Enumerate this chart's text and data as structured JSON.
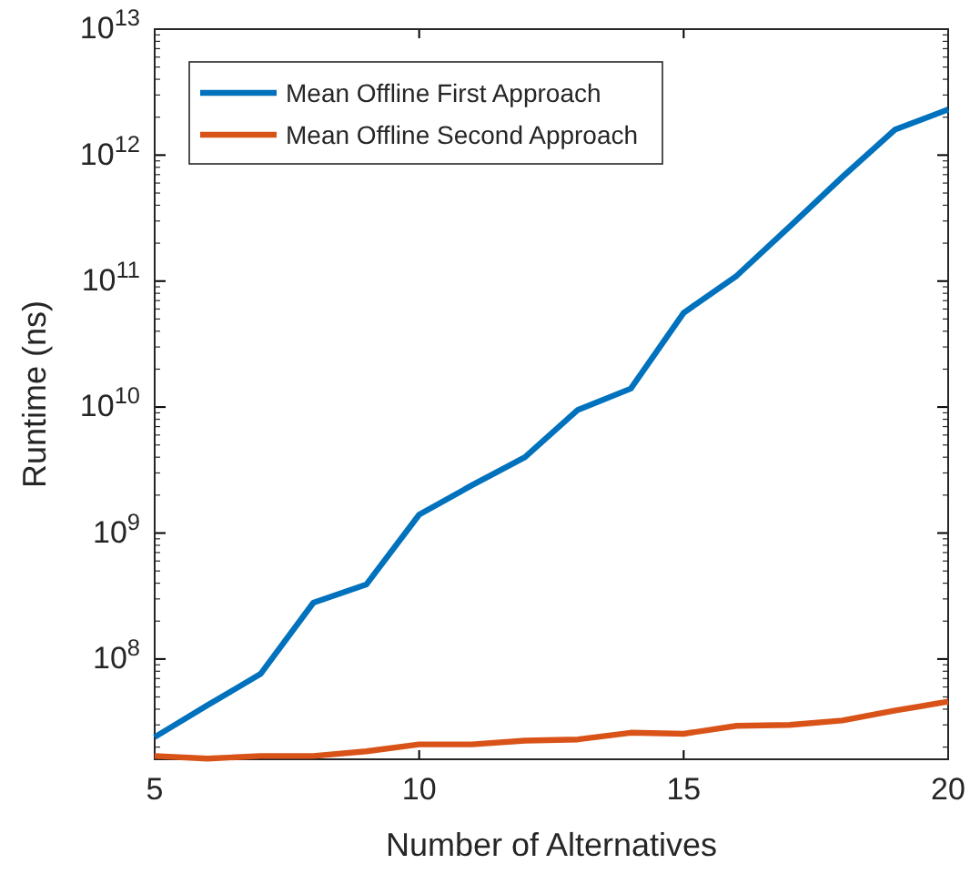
{
  "chart_data": {
    "type": "line",
    "xlabel": "Number of Alternatives",
    "ylabel": "Runtime (ns)",
    "log": "y",
    "x": [
      5,
      6,
      7,
      8,
      9,
      10,
      11,
      12,
      13,
      14,
      15,
      16,
      17,
      18,
      19,
      20
    ],
    "xlim": [
      5,
      20
    ],
    "xticks": [
      5,
      10,
      15,
      20
    ],
    "ylim": [
      16000000,
      10000000000000
    ],
    "yticks": [
      {
        "value": 100000000,
        "label": "10$^{8}$"
      },
      {
        "value": 1000000000,
        "label": "10$^{9}$"
      },
      {
        "value": 10000000000,
        "label": "10$^{10}$"
      },
      {
        "value": 100000000000,
        "label": "10$^{11}$"
      },
      {
        "value": 1000000000000,
        "label": "10$^{12}$"
      },
      {
        "value": 10000000000000,
        "label": "10$^{13}$"
      }
    ],
    "legend": "top left",
    "grid": false,
    "line_style": "solid",
    "marker": "none",
    "series": [
      {
        "name": "Mean Offline First Approach",
        "color": "#0072bd",
        "values": [
          24000000,
          43000000,
          76000000,
          280000000,
          390000000,
          1400000000,
          2400000000,
          4000000000,
          9500000000,
          14000000000,
          56000000000,
          110000000000,
          270000000000,
          670000000000,
          1600000000000,
          2300000000000
        ]
      },
      {
        "name": "Mean Offline Second Approach",
        "color": "#d95319",
        "values": [
          17000000,
          16200000,
          17000000,
          17000000,
          18500000,
          21000000,
          21000000,
          22500000,
          23000000,
          26000000,
          25500000,
          29500000,
          30000000,
          32500000,
          39000000,
          46000000
        ]
      }
    ]
  }
}
